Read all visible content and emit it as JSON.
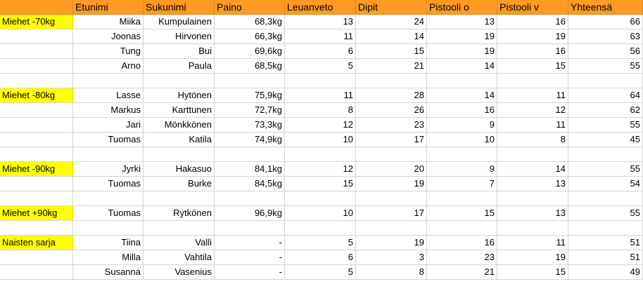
{
  "sheet": {
    "columns": [
      "",
      "Etunimi",
      "Sukunimi",
      "Paino",
      "Leuanveto",
      "Dipit",
      "Pistooli o",
      "Pistooli v",
      "Yhteensä"
    ],
    "rows": [
      [
        "Miehet -70kg",
        "Miika",
        "Kumpulainen",
        "68,3kg",
        "13",
        "24",
        "13",
        "16",
        "66"
      ],
      [
        "",
        "Joonas",
        "Hirvonen",
        "66,3kg",
        "11",
        "14",
        "19",
        "19",
        "63"
      ],
      [
        "",
        "Tung",
        "Bui",
        "69,6kg",
        "6",
        "15",
        "19",
        "16",
        "56"
      ],
      [
        "",
        "Arno",
        "Paula",
        "68,5kg",
        "5",
        "21",
        "14",
        "15",
        "55"
      ],
      [
        "",
        "",
        "",
        "",
        "",
        "",
        "",
        "",
        ""
      ],
      [
        "Miehet -80kg",
        "Lasse",
        "Hytönen",
        "75,9kg",
        "11",
        "28",
        "14",
        "11",
        "64"
      ],
      [
        "",
        "Markus",
        "Karttunen",
        "72,7kg",
        "8",
        "26",
        "16",
        "12",
        "62"
      ],
      [
        "",
        "Jari",
        "Mönkkönen",
        "73,3kg",
        "12",
        "23",
        "9",
        "11",
        "55"
      ],
      [
        "",
        "Tuomas",
        "Katila",
        "74,9kg",
        "10",
        "17",
        "10",
        "8",
        "45"
      ],
      [
        "",
        "",
        "",
        "",
        "",
        "",
        "",
        "",
        ""
      ],
      [
        "Miehet -90kg",
        "Jyrki",
        "Hakasuo",
        "84,1kg",
        "12",
        "20",
        "9",
        "14",
        "55"
      ],
      [
        "",
        "Tuomas",
        "Burke",
        "84,5kg",
        "15",
        "19",
        "7",
        "13",
        "54"
      ],
      [
        "",
        "",
        "",
        "",
        "",
        "",
        "",
        "",
        ""
      ],
      [
        "Miehet +90kg",
        "Tuomas",
        "Rytkönen",
        "96,9kg",
        "10",
        "17",
        "15",
        "13",
        "55"
      ],
      [
        "",
        "",
        "",
        "",
        "",
        "",
        "",
        "",
        ""
      ],
      [
        "Naisten sarja",
        "Tiina",
        "Valli",
        "-",
        "5",
        "19",
        "16",
        "11",
        "51"
      ],
      [
        "",
        "Milla",
        "Vahtila",
        "-",
        "6",
        "3",
        "23",
        "19",
        "51"
      ],
      [
        "",
        "Susanna",
        "Vasenius",
        "-",
        "5",
        "8",
        "21",
        "15",
        "49"
      ]
    ]
  },
  "colors": {
    "header": "#ff9b22",
    "category_highlight": "#ffff00",
    "grid": "#d4d4d4"
  }
}
